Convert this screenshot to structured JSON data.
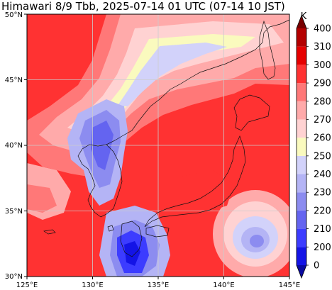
{
  "title": "Himawari 8/9 Tbb, 2025-07-14 01 UTC (07-14 10 JST)",
  "map": {
    "lon_range": [
      125,
      145
    ],
    "lat_range": [
      30,
      50
    ],
    "x_ticks": [
      "125°E",
      "130°E",
      "135°E",
      "140°E",
      "145°E"
    ],
    "y_ticks": [
      "30°N",
      "35°N",
      "40°N",
      "45°N",
      "50°N"
    ],
    "grid": true
  },
  "colorbar": {
    "unit": "K",
    "labels": [
      "0",
      "200",
      "210",
      "220",
      "230",
      "240",
      "250",
      "260",
      "270",
      "280",
      "290",
      "300",
      "310",
      "400"
    ],
    "colors": [
      "#0a0aa0",
      "#1414e6",
      "#3c3cff",
      "#6464f0",
      "#8c8cf0",
      "#b4b4f5",
      "#d2d2fa",
      "#fafabe",
      "#ffd2d2",
      "#ffaaaa",
      "#ff7878",
      "#ff3232",
      "#e60000",
      "#b40000",
      "#780000"
    ]
  }
}
